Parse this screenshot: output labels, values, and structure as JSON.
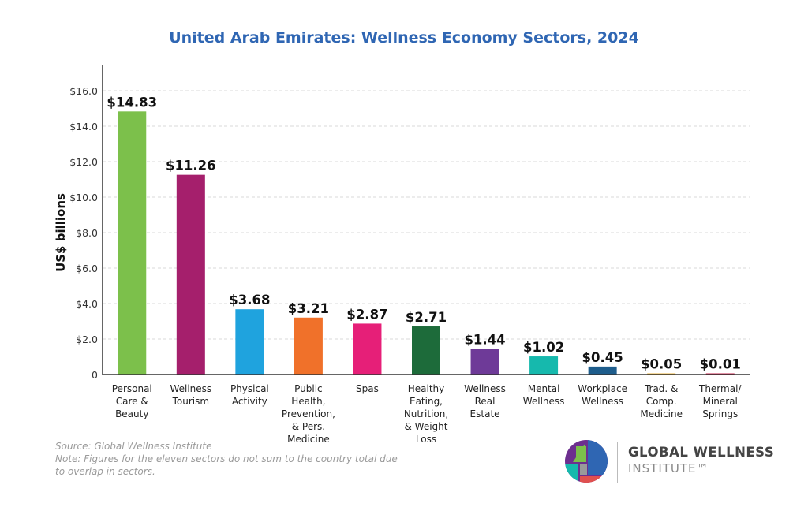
{
  "chart_data": {
    "type": "bar",
    "title": "United Arab Emirates: Wellness Economy Sectors, 2024",
    "xlabel": "",
    "ylabel": "US$ billions",
    "ylim": [
      0,
      17.5
    ],
    "yticks": [
      0,
      2,
      4,
      6,
      8,
      10,
      12,
      14,
      16
    ],
    "ytick_labels": [
      "0",
      "$2.0",
      "$4.0",
      "$6.0",
      "$8.0",
      "$10.0",
      "$12.0",
      "$14.0",
      "$16.0"
    ],
    "grid": true,
    "categories": [
      [
        "Personal",
        "Care &",
        "Beauty"
      ],
      [
        "Wellness",
        "Tourism"
      ],
      [
        "Physical",
        "Activity"
      ],
      [
        "Public",
        "Health,",
        "Prevention,",
        "& Pers.",
        "Medicine"
      ],
      [
        "Spas"
      ],
      [
        "Healthy",
        "Eating,",
        "Nutrition,",
        "& Weight",
        "Loss"
      ],
      [
        "Wellness",
        "Real",
        "Estate"
      ],
      [
        "Mental",
        "Wellness"
      ],
      [
        "Workplace",
        "Wellness"
      ],
      [
        "Trad. &",
        "Comp.",
        "Medicine"
      ],
      [
        "Thermal/",
        "Mineral",
        "Springs"
      ]
    ],
    "values": [
      14.83,
      11.26,
      3.68,
      3.21,
      2.87,
      2.71,
      1.44,
      1.02,
      0.45,
      0.05,
      0.01
    ],
    "data_labels": [
      "$14.83",
      "$11.26",
      "$3.68",
      "$3.21",
      "$2.87",
      "$2.71",
      "$1.44",
      "$1.02",
      "$0.45",
      "$0.05",
      "$0.01"
    ],
    "colors": [
      "#7cc04b",
      "#a51f6c",
      "#1fa3de",
      "#f0712a",
      "#e61f78",
      "#1d6b3a",
      "#6e3a98",
      "#16b9ad",
      "#1e5d8c",
      "#e9b23a",
      "#c7264f"
    ]
  },
  "footer": {
    "source": "Source: Global Wellness Institute",
    "note": "Note: Figures for the eleven sectors do not sum to the country total due to overlap in sectors."
  },
  "logo": {
    "line1": "GLOBAL WELLNESS",
    "line2": "INSTITUTE™"
  }
}
